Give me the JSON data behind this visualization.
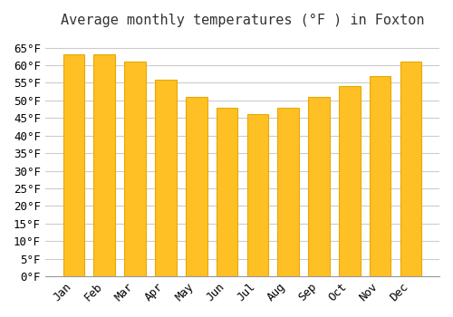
{
  "title": "Average monthly temperatures (°F ) in Foxton",
  "months": [
    "Jan",
    "Feb",
    "Mar",
    "Apr",
    "May",
    "Jun",
    "Jul",
    "Aug",
    "Sep",
    "Oct",
    "Nov",
    "Dec"
  ],
  "values": [
    63,
    63,
    61,
    56,
    51,
    48,
    46,
    48,
    51,
    54,
    57,
    61
  ],
  "bar_color": "#FFC025",
  "bar_edge_color": "#E8A800",
  "ylim": [
    0,
    68
  ],
  "yticks": [
    0,
    5,
    10,
    15,
    20,
    25,
    30,
    35,
    40,
    45,
    50,
    55,
    60,
    65
  ],
  "ylabel_suffix": "°F",
  "background_color": "#ffffff",
  "grid_color": "#cccccc",
  "title_fontsize": 11,
  "tick_fontsize": 9
}
